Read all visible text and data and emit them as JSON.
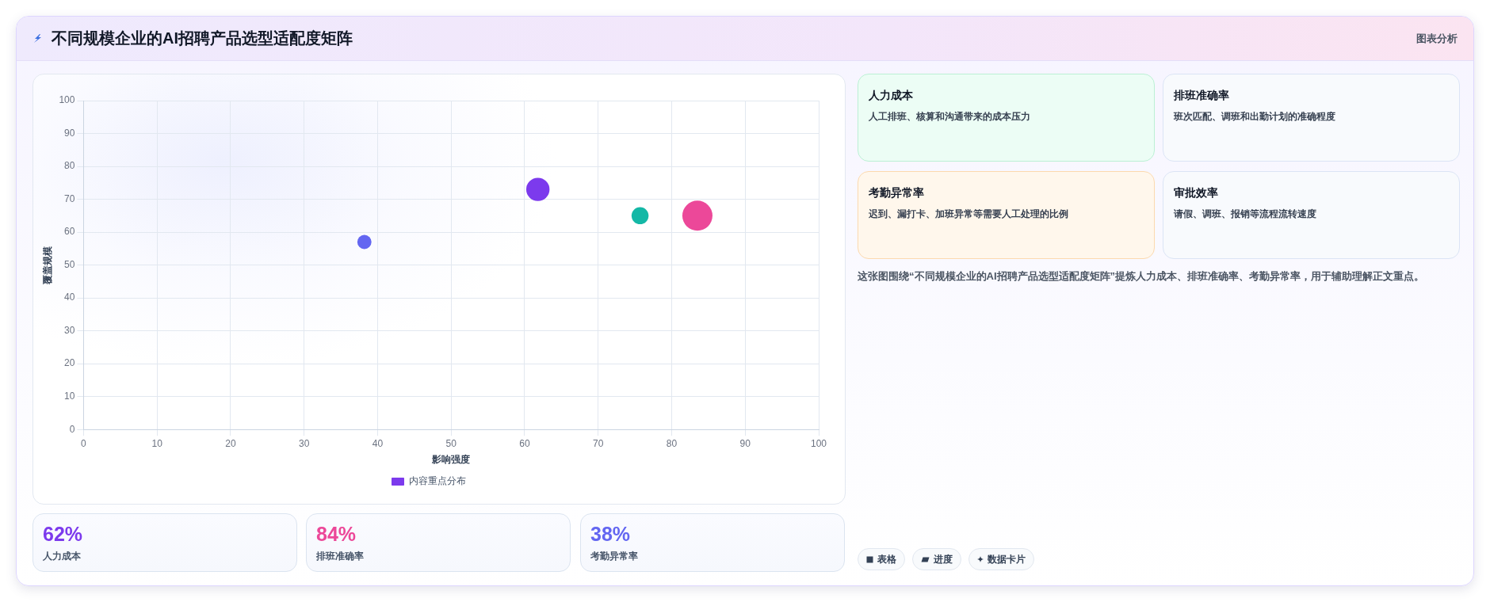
{
  "chart_data": [
    {
      "type": "other",
      "title": "不同规模企业的AI招聘产品选型适配度矩阵",
      "annotations": [
        "图表分析"
      ]
    },
    {
      "type": "bubble",
      "xlabel": "影响强度",
      "ylabel": "覆盖规模",
      "xlim": [
        0,
        100
      ],
      "ylim": [
        0,
        100
      ],
      "xticks": [
        0,
        10,
        20,
        30,
        40,
        50,
        60,
        70,
        80,
        90,
        100
      ],
      "yticks": [
        0,
        10,
        20,
        30,
        40,
        50,
        60,
        70,
        80,
        90,
        100
      ],
      "grid": true,
      "legend": "bottom",
      "series": [
        {
          "name": "内容重点分布",
          "color": "#7c3aed",
          "colors": [
            "#7c3aed",
            "#14b8a6",
            "#ec4899",
            "#6366f1"
          ],
          "x": [
            61.8,
            75.7,
            83.5,
            38.2
          ],
          "values": [
            73,
            65,
            65,
            57
          ],
          "sizes": [
            0.6,
            0.32,
            1,
            0.22
          ]
        }
      ]
    },
    {
      "type": "other",
      "title": "62%",
      "subtitle": "人力成本"
    },
    {
      "type": "other",
      "title": "84%",
      "subtitle": "排班准确率"
    },
    {
      "type": "other",
      "title": "38%",
      "subtitle": "考勤异常率"
    },
    {
      "type": "other",
      "title": "人力成本",
      "subtitle": "人工排班、核算和沟通带来的成本压力"
    },
    {
      "type": "other",
      "title": "排班准确率",
      "subtitle": "班次匹配、调班和出勤计划的准确程度"
    },
    {
      "type": "other",
      "title": "考勤异常率",
      "subtitle": "迟到、漏打卡、加班异常等需要人工处理的比例"
    },
    {
      "type": "other",
      "title": "审批效率",
      "subtitle": "请假、调班、报销等流程流转速度"
    },
    {
      "type": "other",
      "annotations": [
        "这张图围绕“不同规模企业的AI招聘产品选型适配度矩阵”提炼人力成本、排班准确率、考勤异常率，用于辅助理解正文重点。",
        "表格",
        "进度",
        "数据卡片"
      ]
    }
  ]
}
